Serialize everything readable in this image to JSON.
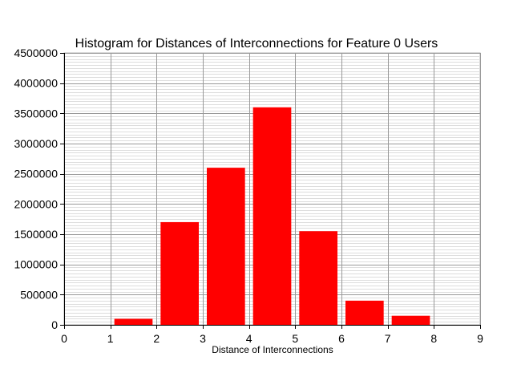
{
  "chart_data": {
    "type": "bar",
    "title": "Histogram for Distances of Interconnections for Feature 0 Users",
    "xlabel": "Distance of Interconnections",
    "ylabel": "",
    "xlim": [
      0,
      9
    ],
    "ylim": [
      0,
      4500000
    ],
    "x_ticks": [
      0,
      1,
      2,
      3,
      4,
      5,
      6,
      7,
      8,
      9
    ],
    "y_ticks": [
      0,
      500000,
      1000000,
      1500000,
      2000000,
      2500000,
      3000000,
      3500000,
      4000000,
      4500000
    ],
    "grid": true,
    "bar_color": "#ff0000",
    "bins": [
      {
        "x_start": 1,
        "x_end": 2,
        "value": 100000
      },
      {
        "x_start": 2,
        "x_end": 3,
        "value": 1700000
      },
      {
        "x_start": 3,
        "x_end": 4,
        "value": 2600000
      },
      {
        "x_start": 4,
        "x_end": 5,
        "value": 3600000
      },
      {
        "x_start": 5,
        "x_end": 6,
        "value": 1550000
      },
      {
        "x_start": 6,
        "x_end": 7,
        "value": 400000
      },
      {
        "x_start": 7,
        "x_end": 8,
        "value": 150000
      }
    ]
  }
}
